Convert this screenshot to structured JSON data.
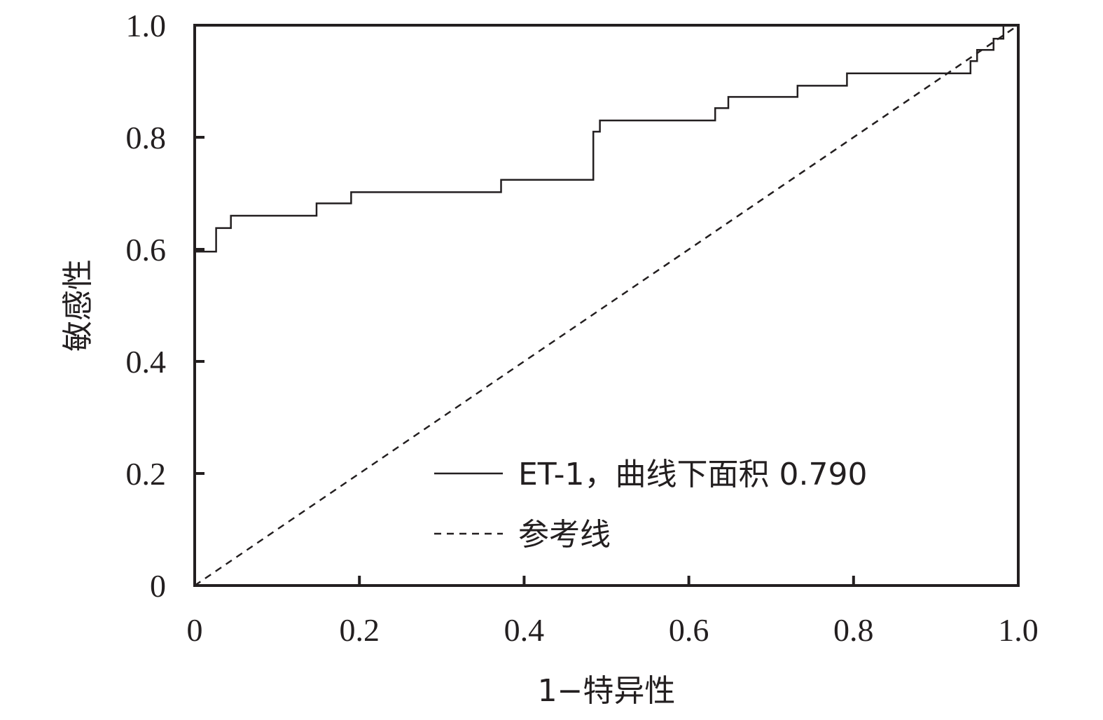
{
  "chart_data": {
    "type": "line",
    "xlabel": "1−特异性",
    "ylabel": "敏感性",
    "xlim": [
      0,
      1.0
    ],
    "ylim": [
      0,
      1.0
    ],
    "x_ticks": [
      {
        "value": 0,
        "label": "0"
      },
      {
        "value": 0.2,
        "label": "0.2"
      },
      {
        "value": 0.4,
        "label": "0.4"
      },
      {
        "value": 0.6,
        "label": "0.6"
      },
      {
        "value": 0.8,
        "label": "0.8"
      },
      {
        "value": 1.0,
        "label": "1.0"
      }
    ],
    "y_ticks": [
      {
        "value": 0,
        "label": "0"
      },
      {
        "value": 0.2,
        "label": "0.2"
      },
      {
        "value": 0.4,
        "label": "0.4"
      },
      {
        "value": 0.6,
        "label": "0.6"
      },
      {
        "value": 0.8,
        "label": "0.8"
      },
      {
        "value": 1.0,
        "label": "1.0"
      }
    ],
    "grid": false,
    "legend_position": "lower-right",
    "series": [
      {
        "name": "ET-1，曲线下面积 0.790",
        "style": "solid",
        "color": "#231f20",
        "points": [
          [
            0,
            0
          ],
          [
            0,
            0.596
          ],
          [
            0.026,
            0.596
          ],
          [
            0.026,
            0.638
          ],
          [
            0.044,
            0.638
          ],
          [
            0.044,
            0.66
          ],
          [
            0.148,
            0.66
          ],
          [
            0.148,
            0.682
          ],
          [
            0.19,
            0.682
          ],
          [
            0.19,
            0.702
          ],
          [
            0.372,
            0.702
          ],
          [
            0.372,
            0.724
          ],
          [
            0.484,
            0.724
          ],
          [
            0.484,
            0.81
          ],
          [
            0.492,
            0.81
          ],
          [
            0.492,
            0.83
          ],
          [
            0.632,
            0.83
          ],
          [
            0.632,
            0.852
          ],
          [
            0.648,
            0.852
          ],
          [
            0.648,
            0.872
          ],
          [
            0.732,
            0.872
          ],
          [
            0.732,
            0.892
          ],
          [
            0.792,
            0.892
          ],
          [
            0.792,
            0.914
          ],
          [
            0.942,
            0.914
          ],
          [
            0.942,
            0.936
          ],
          [
            0.95,
            0.936
          ],
          [
            0.95,
            0.956
          ],
          [
            0.97,
            0.956
          ],
          [
            0.97,
            0.976
          ],
          [
            0.982,
            0.976
          ],
          [
            0.982,
            1.0
          ],
          [
            1.0,
            1.0
          ]
        ]
      },
      {
        "name": "参考线",
        "style": "dashed",
        "color": "#231f20",
        "points": [
          [
            0,
            0
          ],
          [
            1,
            1
          ]
        ]
      }
    ]
  }
}
